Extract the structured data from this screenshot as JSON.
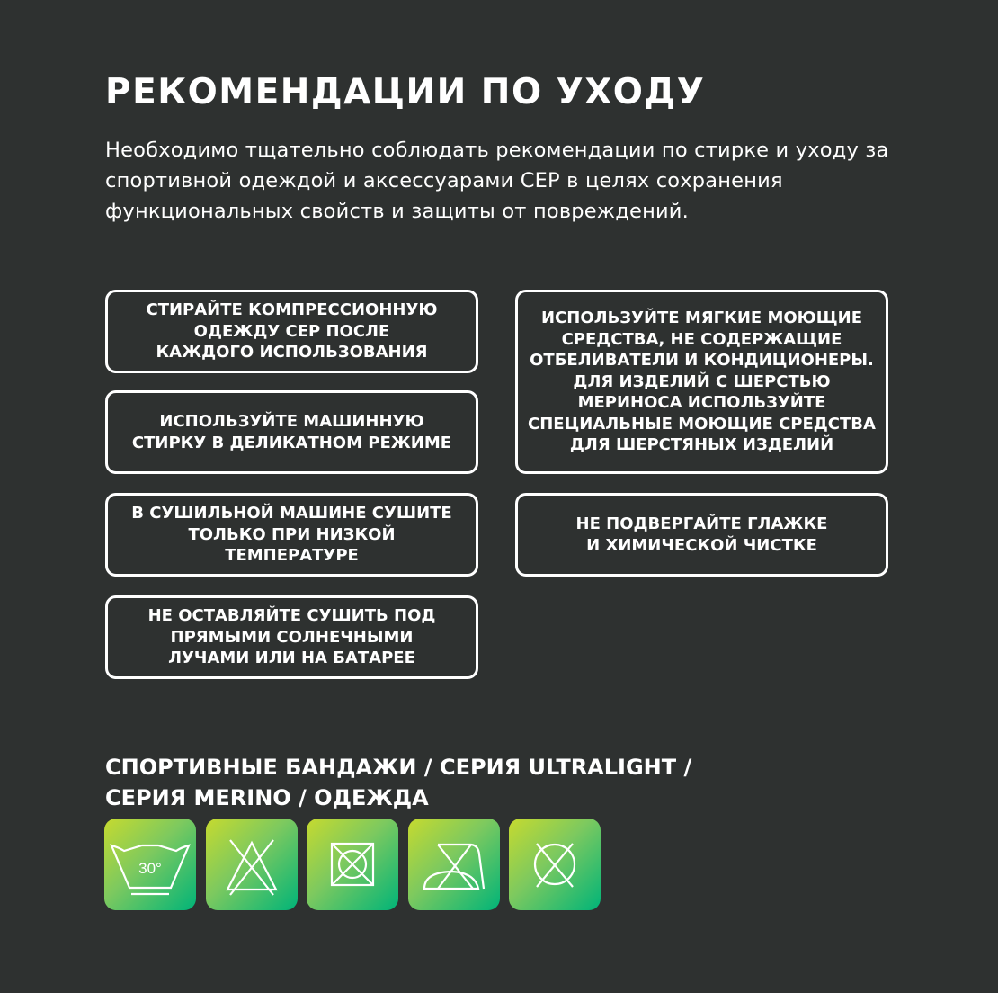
{
  "title": "РЕКОМЕНДАЦИИ ПО УХОДУ",
  "intro": "Необходимо тщательно соблюдать рекомендации по стирке и уходу за  спортивной одеждой и аксессуарами CEP в целях сохранения функциональных свойств и защиты от повреждений.",
  "recommendations": {
    "left": [
      "Стирайте компрессионную одежду CEP после каждого использования",
      "Используйте машинную стирку в деликатном режиме",
      "В сушильной машине сушите только при низкой температуре",
      "Не оставляйте сушить под прямыми солнечными лучами или на батарее"
    ],
    "right": [
      "Используйте мягкие моющие средства, не содержащие отбеливатели и кондиционеры. Для изделий с шерстью мериноса используйте специальные моющие средства для шерстяных изделий",
      "Не подвергайте глажке и химической чистке"
    ]
  },
  "care_section": {
    "heading": "СПОРТИВНЫЕ БАНДАЖИ / СЕРИЯ ULTRALIGHT / СЕРИЯ MERINO / ОДЕЖДА",
    "icons": [
      {
        "name": "wash-30-gentle-icon",
        "label": "30°"
      },
      {
        "name": "no-bleach-icon"
      },
      {
        "name": "tumble-dry-low-icon"
      },
      {
        "name": "no-ironing-icon"
      },
      {
        "name": "no-dry-cleaning-icon"
      }
    ],
    "gradient": [
      "#c6da2f",
      "#00b478"
    ]
  },
  "colors": {
    "background": "#2e3130",
    "text": "#ffffff"
  }
}
